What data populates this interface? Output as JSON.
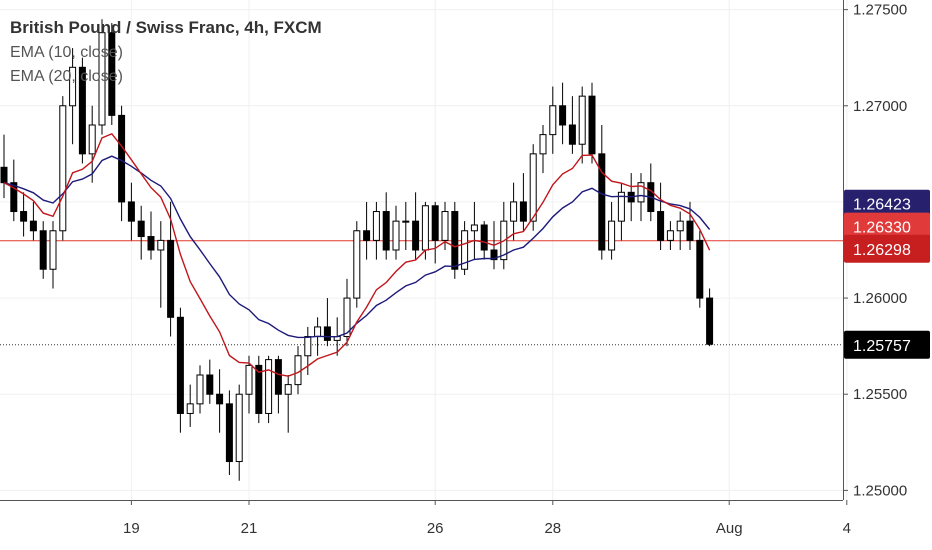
{
  "legend": {
    "title": "British Pound / Swiss Franc, 4h, FXCM",
    "indicators": [
      "EMA (10, close)",
      "EMA (20, close)"
    ]
  },
  "colors": {
    "ema10": "#c0161c",
    "ema20": "#1d1a7a",
    "horizontal_line": "#e0392f",
    "badge_ema20": "#27216d",
    "badge_ema10": "#e03a3a",
    "badge_hline": "#c71f1f",
    "badge_last": "#000000",
    "candle_up_fill": "#ffffff",
    "candle_down_fill": "#000000"
  },
  "chart_data": {
    "type": "candlestick",
    "ylim": [
      1.2495,
      1.2755
    ],
    "xlim": [
      0,
      73
    ],
    "y_ticks": [
      "1.25000",
      "1.25500",
      "1.26000",
      "1.26500",
      "1.27000",
      "1.27500"
    ],
    "x_ticks": [
      {
        "label": "19",
        "pos": 13
      },
      {
        "label": "21",
        "pos": 25
      },
      {
        "label": "26",
        "pos": 44
      },
      {
        "label": "28",
        "pos": 56
      },
      {
        "label": "Aug",
        "pos": 74
      },
      {
        "label": "4",
        "pos": 86
      }
    ],
    "badges": [
      {
        "label": "1.26423",
        "value": 1.26423,
        "role": "ema20"
      },
      {
        "label": "1.26330",
        "value": 1.2633,
        "role": "ema10"
      },
      {
        "label": "1.26298",
        "value": 1.26298,
        "role": "hline"
      },
      {
        "label": "1.25757",
        "value": 1.25757,
        "role": "last"
      }
    ],
    "horizontal_line": 1.26298,
    "last_price_line": 1.25757,
    "candles": [
      [
        1.2668,
        1.2685,
        1.2652,
        1.266
      ],
      [
        1.266,
        1.2672,
        1.264,
        1.2645
      ],
      [
        1.2645,
        1.2655,
        1.2632,
        1.264
      ],
      [
        1.264,
        1.265,
        1.263,
        1.2635
      ],
      [
        1.2635,
        1.264,
        1.261,
        1.2615
      ],
      [
        1.2615,
        1.264,
        1.2605,
        1.2635
      ],
      [
        1.2635,
        1.2705,
        1.263,
        1.27
      ],
      [
        1.27,
        1.273,
        1.268,
        1.272
      ],
      [
        1.272,
        1.2725,
        1.267,
        1.2675
      ],
      [
        1.2675,
        1.27,
        1.266,
        1.269
      ],
      [
        1.269,
        1.2745,
        1.2685,
        1.2738
      ],
      [
        1.2738,
        1.2743,
        1.269,
        1.2695
      ],
      [
        1.2695,
        1.27,
        1.264,
        1.265
      ],
      [
        1.265,
        1.266,
        1.263,
        1.264
      ],
      [
        1.264,
        1.2648,
        1.262,
        1.2632
      ],
      [
        1.2632,
        1.2645,
        1.262,
        1.2625
      ],
      [
        1.2625,
        1.264,
        1.2595,
        1.263
      ],
      [
        1.263,
        1.265,
        1.258,
        1.259
      ],
      [
        1.259,
        1.2595,
        1.253,
        1.254
      ],
      [
        1.254,
        1.2555,
        1.2533,
        1.2545
      ],
      [
        1.2545,
        1.2565,
        1.254,
        1.256
      ],
      [
        1.256,
        1.2568,
        1.2545,
        1.255
      ],
      [
        1.255,
        1.2563,
        1.253,
        1.2545
      ],
      [
        1.2545,
        1.2552,
        1.2508,
        1.2515
      ],
      [
        1.2515,
        1.2555,
        1.2505,
        1.255
      ],
      [
        1.255,
        1.257,
        1.254,
        1.2565
      ],
      [
        1.2565,
        1.257,
        1.2535,
        1.254
      ],
      [
        1.254,
        1.257,
        1.2535,
        1.2568
      ],
      [
        1.2568,
        1.257,
        1.254,
        1.255
      ],
      [
        1.255,
        1.256,
        1.253,
        1.2555
      ],
      [
        1.2555,
        1.2575,
        1.255,
        1.257
      ],
      [
        1.257,
        1.2585,
        1.256,
        1.258
      ],
      [
        1.258,
        1.259,
        1.257,
        1.2585
      ],
      [
        1.2585,
        1.26,
        1.2575,
        1.2578
      ],
      [
        1.2578,
        1.259,
        1.257,
        1.258
      ],
      [
        1.258,
        1.261,
        1.2575,
        1.26
      ],
      [
        1.26,
        1.264,
        1.2595,
        1.2635
      ],
      [
        1.2635,
        1.265,
        1.262,
        1.263
      ],
      [
        1.263,
        1.265,
        1.262,
        1.2645
      ],
      [
        1.2645,
        1.2655,
        1.262,
        1.2625
      ],
      [
        1.2625,
        1.2648,
        1.262,
        1.264
      ],
      [
        1.264,
        1.265,
        1.2625,
        1.264
      ],
      [
        1.264,
        1.2655,
        1.262,
        1.2625
      ],
      [
        1.2625,
        1.265,
        1.262,
        1.2648
      ],
      [
        1.2648,
        1.265,
        1.2618,
        1.263
      ],
      [
        1.263,
        1.265,
        1.2625,
        1.2645
      ],
      [
        1.2645,
        1.265,
        1.261,
        1.2615
      ],
      [
        1.2615,
        1.264,
        1.2612,
        1.2635
      ],
      [
        1.2635,
        1.265,
        1.262,
        1.2638
      ],
      [
        1.2638,
        1.264,
        1.262,
        1.2625
      ],
      [
        1.2625,
        1.264,
        1.2615,
        1.262
      ],
      [
        1.262,
        1.265,
        1.2615,
        1.264
      ],
      [
        1.264,
        1.266,
        1.263,
        1.265
      ],
      [
        1.265,
        1.2665,
        1.2635,
        1.264
      ],
      [
        1.264,
        1.268,
        1.2635,
        1.2675
      ],
      [
        1.2675,
        1.269,
        1.2665,
        1.2685
      ],
      [
        1.2685,
        1.271,
        1.2675,
        1.27
      ],
      [
        1.27,
        1.2712,
        1.268,
        1.269
      ],
      [
        1.269,
        1.2705,
        1.2675,
        1.268
      ],
      [
        1.268,
        1.271,
        1.267,
        1.2705
      ],
      [
        1.2705,
        1.2712,
        1.267,
        1.2675
      ],
      [
        1.2675,
        1.269,
        1.262,
        1.2625
      ],
      [
        1.2625,
        1.265,
        1.262,
        1.264
      ],
      [
        1.264,
        1.266,
        1.263,
        1.2655
      ],
      [
        1.2655,
        1.2665,
        1.264,
        1.265
      ],
      [
        1.265,
        1.2665,
        1.264,
        1.266
      ],
      [
        1.266,
        1.267,
        1.264,
        1.2645
      ],
      [
        1.2645,
        1.266,
        1.2625,
        1.263
      ],
      [
        1.263,
        1.264,
        1.2625,
        1.2635
      ],
      [
        1.2635,
        1.2645,
        1.2625,
        1.264
      ],
      [
        1.264,
        1.265,
        1.2625,
        1.263
      ],
      [
        1.263,
        1.2635,
        1.2595,
        1.26
      ],
      [
        1.26,
        1.2605,
        1.2575,
        1.2576
      ]
    ]
  }
}
